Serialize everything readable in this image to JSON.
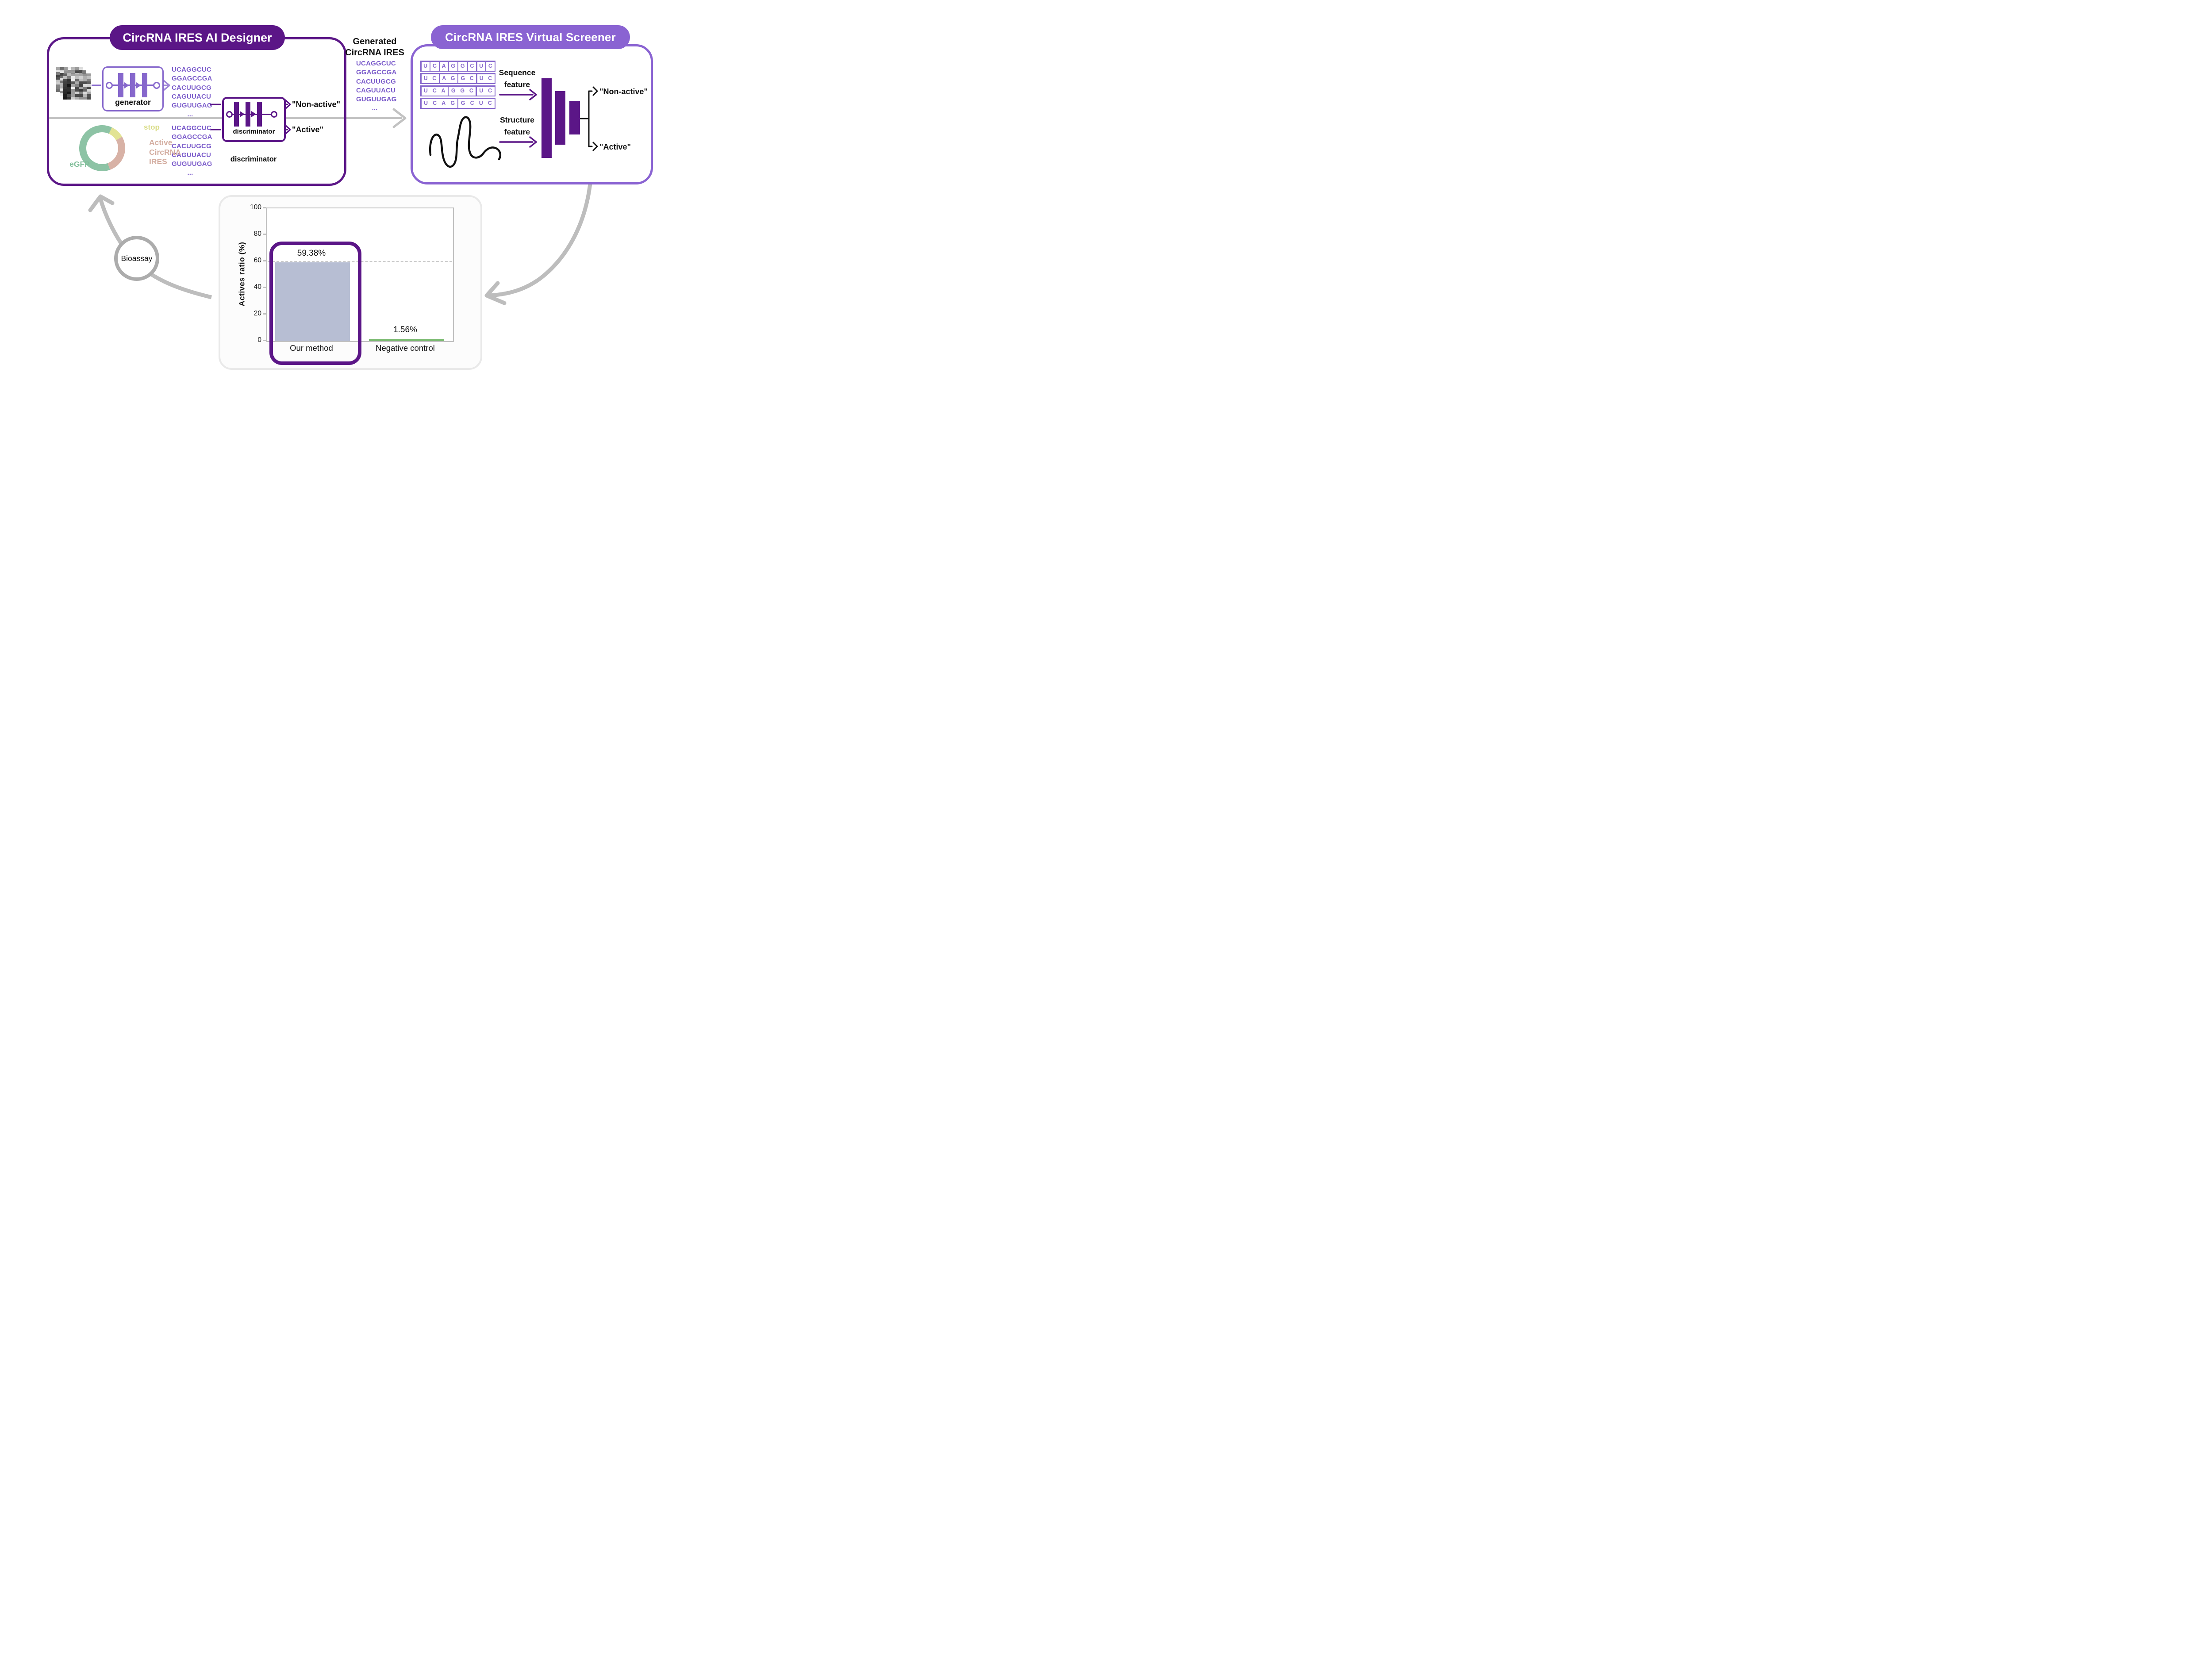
{
  "designer": {
    "title": "CircRNA IRES AI Designer",
    "generator_label": "generator",
    "discriminator_label": "discriminator",
    "discriminator_caption": "discriminator",
    "generated_sequences": [
      "UCAGGCUC",
      "GGAGCCGA",
      "CACUUGCG",
      "CAGUUACU",
      "GUGUUGAG",
      "..."
    ],
    "active_sequences": [
      "UCAGGCUC",
      "GGAGCCGA",
      "CACUUGCG",
      "CAGUUACU",
      "GUGUUGAG",
      "..."
    ],
    "outputs": {
      "nonactive": "\"Non-active\"",
      "active": "\"Active\""
    },
    "plasmid": {
      "egfp": "eGFP",
      "stop": "stop",
      "ires": [
        "Active",
        "CircRNA",
        "IRES"
      ]
    },
    "icons": {
      "input": "noise-matrix-stack-icon",
      "generator": "neural-network-icon",
      "discriminator": "neural-network-icon",
      "plasmid": "plasmid-ring-icon"
    }
  },
  "handoff": {
    "title": [
      "Generated",
      "CircRNA IRES"
    ],
    "sequences": [
      "UCAGGCUC",
      "GGAGCCGA",
      "CACUUGCG",
      "CAGUUACU",
      "GUGUUGAG",
      "..."
    ],
    "icons": {
      "flow": "right-arrow-icon"
    }
  },
  "screener": {
    "title": "CircRNA IRES Virtual Screener",
    "sequence_rows": [
      [
        "U",
        "C",
        "A",
        "G",
        "G",
        "C",
        "U",
        "C"
      ],
      [
        "UC",
        "AG",
        "GC",
        "UC"
      ],
      [
        "UCA",
        "GGC",
        "UC"
      ],
      [
        "UCAG",
        "GCUC"
      ]
    ],
    "sequence_feature": [
      "Sequence",
      "feature"
    ],
    "structure_feature": [
      "Structure",
      "feature"
    ],
    "outputs": {
      "nonactive": "\"Non-active\"",
      "active": "\"Active\""
    },
    "icons": {
      "structure": "rna-structure-squiggle-icon",
      "network": "funnel-bars-icon"
    }
  },
  "loop": {
    "bioassay_label": "Bioassay",
    "icons": {
      "left_arrow": "curved-arrow-up-left-icon",
      "right_arrow": "curved-arrow-down-left-icon"
    }
  },
  "chart_data": {
    "type": "bar",
    "categories": [
      "Our method",
      "Negative control"
    ],
    "values": [
      59.38,
      1.56
    ],
    "value_labels": [
      "59.38%",
      "1.56%"
    ],
    "bar_colors": [
      "#b7bed3",
      "#7cbb72"
    ],
    "ylabel": "Actives ratio (%)",
    "xlabel": "",
    "yticks": [
      0,
      20,
      40,
      60,
      80,
      100
    ],
    "ylim": [
      0,
      100
    ],
    "grid": "off",
    "dashed_reference_line": 60,
    "highlighted_category": "Our method",
    "highlight_color": "#5b1687",
    "legend": "none"
  },
  "colors": {
    "deep_purple": "#5b1687",
    "screener_purple": "#8a63d2",
    "module_purple": "#8667cc",
    "sequence_text": "#7c5dcb",
    "gray_arrow": "#bdbdbd",
    "plasmid_green": "#8dc3a5",
    "plasmid_yellow": "#e2e394",
    "plasmid_rose": "#d8b2a6",
    "egfp_label": "#7fbe99",
    "stop_label": "#d9dc86",
    "ires_label": "#d3ac9f"
  }
}
